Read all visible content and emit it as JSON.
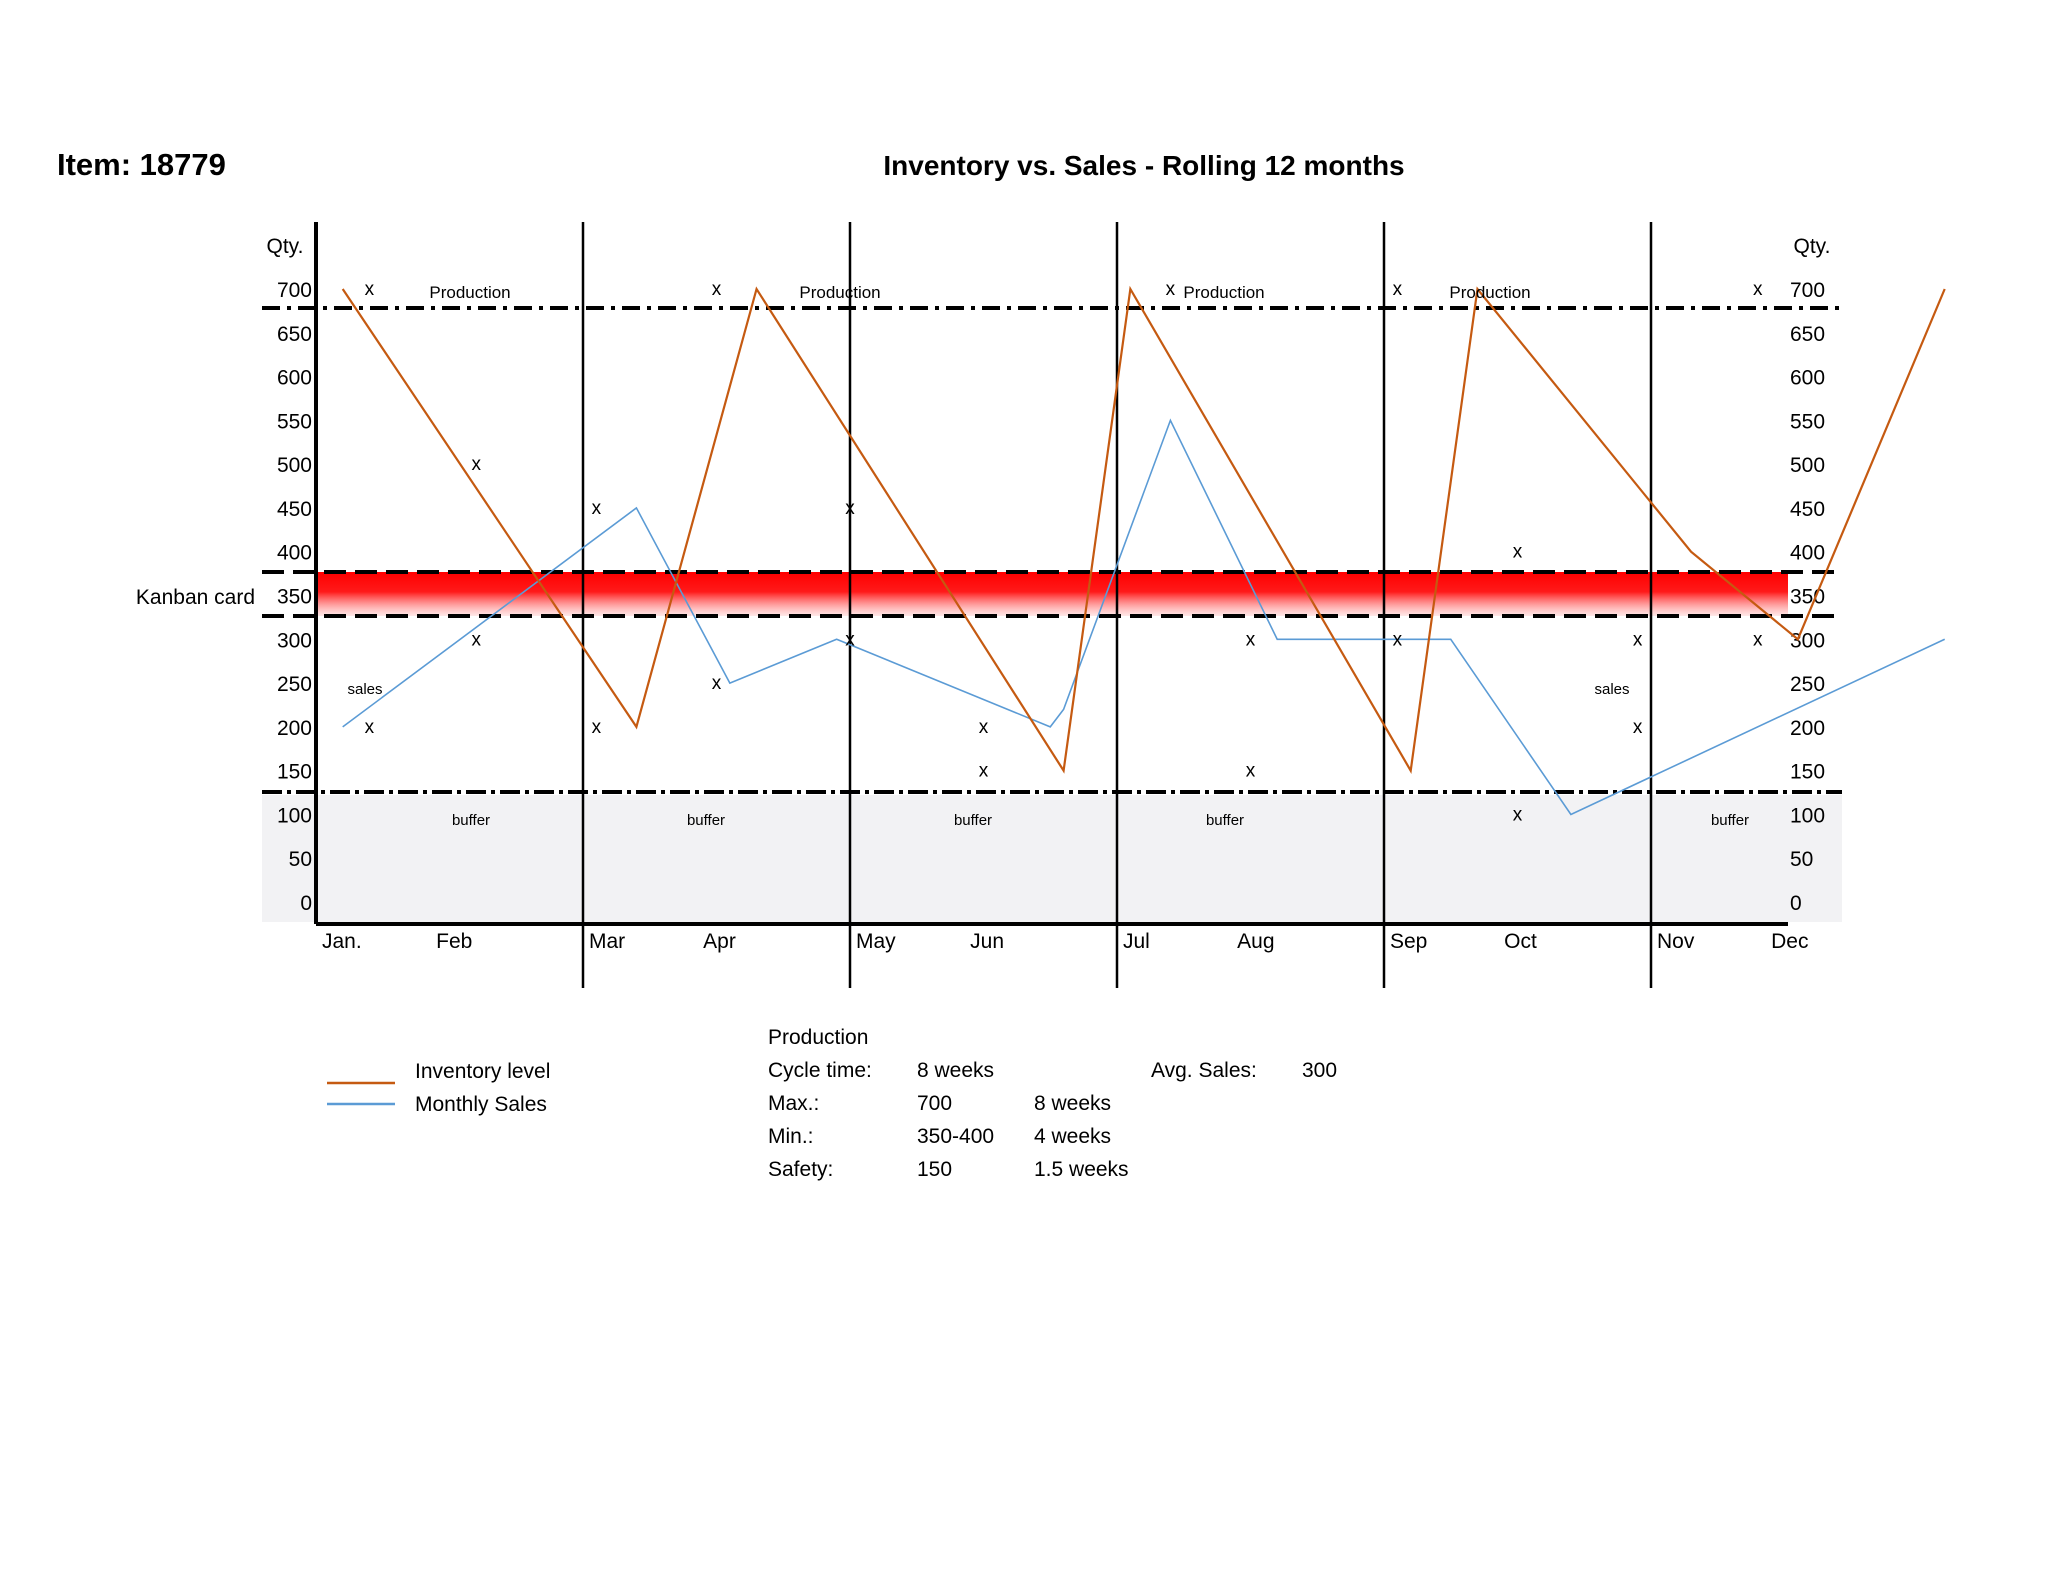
{
  "header": {
    "item_title": "Item: 18779",
    "chart_title": "Inventory vs. Sales - Rolling 12 months"
  },
  "chart_data": {
    "type": "line",
    "title": "Inventory vs. Sales - Rolling 12 months",
    "ylabel": "Qty.",
    "ylim": [
      0,
      700
    ],
    "y_ticks": [
      700,
      650,
      600,
      550,
      500,
      450,
      400,
      350,
      300,
      250,
      200,
      150,
      100,
      50,
      0
    ],
    "categories": [
      "Jan.",
      "Feb",
      "Mar",
      "Apr",
      "May",
      "Jun",
      "Jul",
      "Aug",
      "Sep",
      "Oct",
      "Nov",
      "Dec"
    ],
    "colors": {
      "inventory": "#c55a11",
      "sales": "#5b9bd5",
      "kanban": "#ff0000",
      "buffer_zone": "#f2f2f4"
    },
    "series": [
      {
        "name": "Inventory level",
        "color": "#c55a11",
        "points": [
          [
            0.1,
            700
          ],
          [
            1.2,
            200
          ],
          [
            1.65,
            700
          ],
          [
            2.8,
            150
          ],
          [
            3.05,
            700
          ],
          [
            4.1,
            150
          ],
          [
            4.35,
            700
          ],
          [
            5.15,
            400
          ],
          [
            5.55,
            300
          ],
          [
            6.1,
            700
          ]
        ]
      },
      {
        "name": "Monthly Sales",
        "color": "#5b9bd5",
        "points": [
          [
            0.1,
            200
          ],
          [
            1.2,
            450
          ],
          [
            1.55,
            250
          ],
          [
            1.95,
            300
          ],
          [
            2.75,
            200
          ],
          [
            2.8,
            220
          ],
          [
            3.2,
            550
          ],
          [
            3.6,
            300
          ],
          [
            4.25,
            300
          ],
          [
            4.7,
            100
          ],
          [
            6.1,
            300
          ]
        ]
      }
    ],
    "markers": [
      {
        "x": 0.2,
        "y": 700
      },
      {
        "x": 0.6,
        "y": 500
      },
      {
        "x": 0.6,
        "y": 300
      },
      {
        "x": 0.2,
        "y": 200
      },
      {
        "x": 1.05,
        "y": 450
      },
      {
        "x": 1.05,
        "y": 200
      },
      {
        "x": 1.5,
        "y": 700
      },
      {
        "x": 1.5,
        "y": 250
      },
      {
        "x": 2.0,
        "y": 450
      },
      {
        "x": 2.0,
        "y": 300
      },
      {
        "x": 2.5,
        "y": 200
      },
      {
        "x": 2.5,
        "y": 150
      },
      {
        "x": 3.2,
        "y": 700
      },
      {
        "x": 3.5,
        "y": 300
      },
      {
        "x": 3.5,
        "y": 150
      },
      {
        "x": 4.05,
        "y": 700
      },
      {
        "x": 4.05,
        "y": 300
      },
      {
        "x": 4.5,
        "y": 400
      },
      {
        "x": 4.5,
        "y": 100
      },
      {
        "x": 4.95,
        "y": 300
      },
      {
        "x": 4.95,
        "y": 200
      },
      {
        "x": 5.4,
        "y": 700
      },
      {
        "x": 5.4,
        "y": 300
      }
    ],
    "bands": [
      {
        "name": "Kanban card",
        "range": [
          330,
          380
        ],
        "label": "Kanban card",
        "color": "#ff0000"
      },
      {
        "name": "buffer",
        "range": [
          0,
          140
        ],
        "color": "#f2f2f4"
      }
    ],
    "reference_lines": [
      {
        "value": 690,
        "style": "dash-dot",
        "label": "Production"
      },
      {
        "value": 380,
        "style": "dash"
      },
      {
        "value": 330,
        "style": "dash"
      },
      {
        "value": 140,
        "style": "dash-dot"
      }
    ],
    "annotations": {
      "production": "Production",
      "buffer": "buffer",
      "sales": "sales"
    },
    "legend": {
      "placement": "bottom-left",
      "entries": [
        {
          "label": "Inventory level",
          "color": "#c55a11"
        },
        {
          "label": "Monthly Sales",
          "color": "#5b9bd5"
        }
      ]
    }
  },
  "info_table": {
    "heading": "Production",
    "rows": [
      {
        "label": "Cycle time:",
        "value": "8 weeks",
        "extra": "",
        "extra_label": "Avg. Sales:",
        "extra_value": "300"
      },
      {
        "label": "Max.:",
        "value": "700",
        "extra": "8 weeks",
        "extra_label": "",
        "extra_value": ""
      },
      {
        "label": "Min.:",
        "value": "350-400",
        "extra": "4 weeks",
        "extra_label": "",
        "extra_value": ""
      },
      {
        "label": "Safety:",
        "value": "150",
        "extra": "1.5 weeks",
        "extra_label": "",
        "extra_value": ""
      }
    ]
  }
}
